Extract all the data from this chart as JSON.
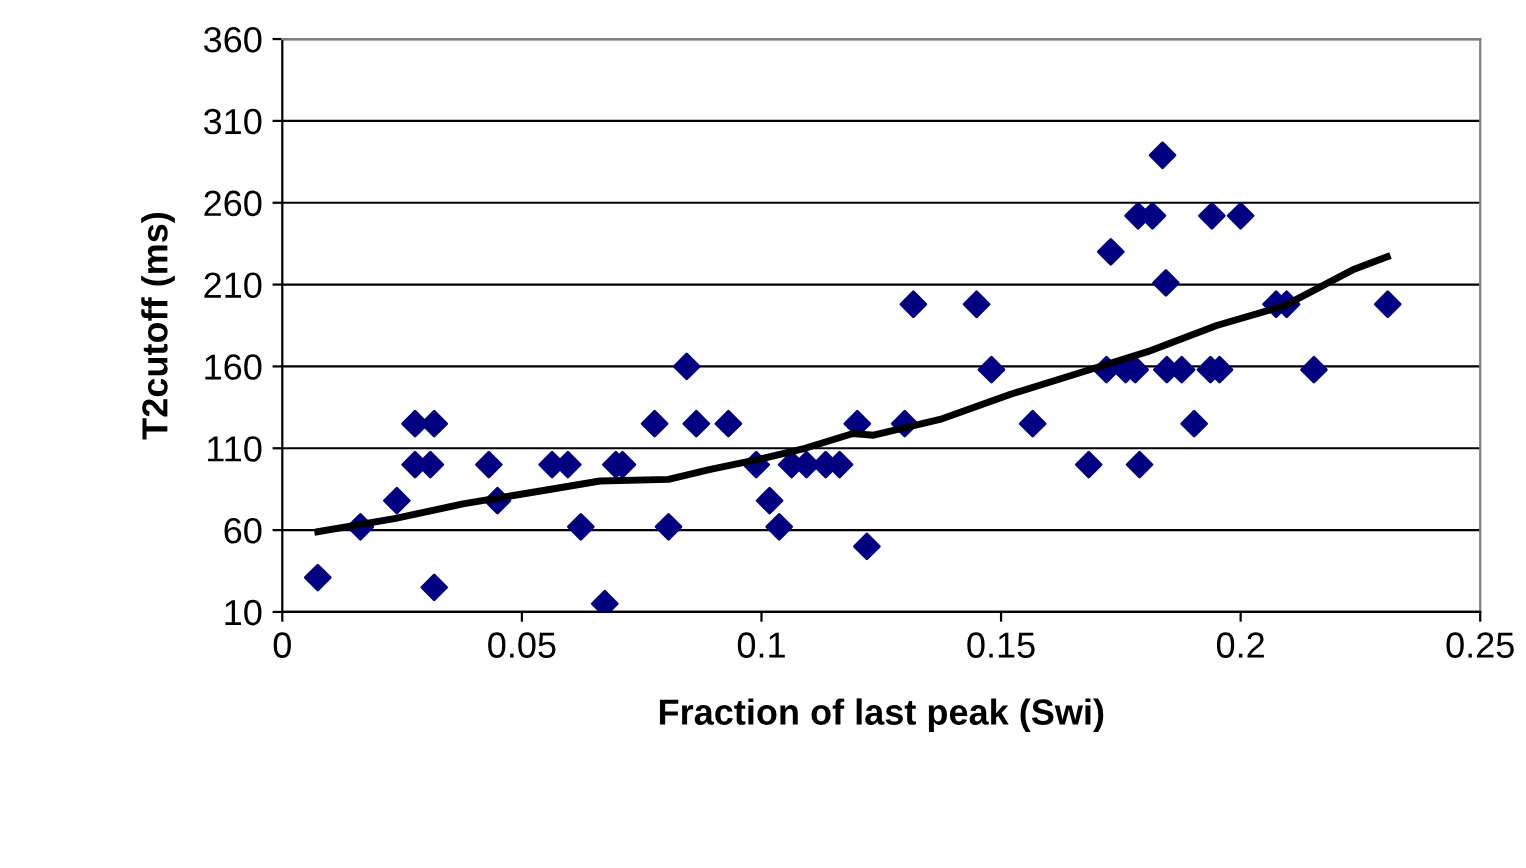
{
  "chart_data": {
    "type": "scatter",
    "xlabel": "Fraction of last peak (Swi)",
    "ylabel": "T2cutoff (ms)",
    "xlim": [
      0,
      0.25
    ],
    "xticks": [
      0,
      0.05,
      0.1,
      0.15,
      0.2,
      0.25
    ],
    "ylim": [
      10,
      360
    ],
    "yticks": [
      10,
      60,
      110,
      160,
      210,
      260,
      310,
      360
    ],
    "grid": "y",
    "series": [
      {
        "color": "#000080",
        "marker": "diamond",
        "x": [
          0.0074,
          0.0163,
          0.0239,
          0.0277,
          0.0277,
          0.0317,
          0.0309,
          0.0317,
          0.0431,
          0.0449,
          0.0563,
          0.0596,
          0.0623,
          0.0673,
          0.0696,
          0.071,
          0.0777,
          0.0806,
          0.0844,
          0.0864,
          0.0931,
          0.0989,
          0.1017,
          0.1037,
          0.1063,
          0.1094,
          0.1134,
          0.1163,
          0.12,
          0.122,
          0.1299,
          0.1317,
          0.1449,
          0.148,
          0.1566,
          0.1683,
          0.172,
          0.1729,
          0.176,
          0.178,
          0.1786,
          0.1789,
          0.1816,
          0.1837,
          0.1844,
          0.1846,
          0.1877,
          0.1903,
          0.194,
          0.1937,
          0.1956,
          0.2,
          0.2074,
          0.2096,
          0.2153,
          0.2307
        ],
        "values": [
          31,
          62,
          78,
          125,
          100,
          125,
          100,
          25,
          100,
          78,
          100,
          100,
          62,
          15,
          100,
          100,
          125,
          62,
          160,
          125,
          125,
          100,
          78,
          62,
          100,
          100,
          100,
          100,
          125,
          50,
          125,
          198,
          198,
          158,
          125,
          100,
          158,
          230,
          158,
          158,
          252,
          100,
          252,
          289,
          211,
          158,
          158,
          125,
          252,
          158,
          158,
          252,
          198,
          198,
          158,
          198
        ]
      },
      {
        "type": "line",
        "color": "#000000",
        "marker": "none",
        "line_style": "solid",
        "x": [
          0.0074,
          0.0234,
          0.0377,
          0.052,
          0.0663,
          0.0806,
          0.0891,
          0.0991,
          0.1091,
          0.1191,
          0.1234,
          0.1377,
          0.152,
          0.1663,
          0.1806,
          0.195,
          0.2091,
          0.2234,
          0.2306
        ],
        "values": [
          59,
          67,
          76,
          83,
          90,
          91,
          97,
          103,
          110,
          119,
          118,
          128,
          143,
          156,
          169,
          185,
          197,
          219,
          227
        ]
      }
    ]
  }
}
